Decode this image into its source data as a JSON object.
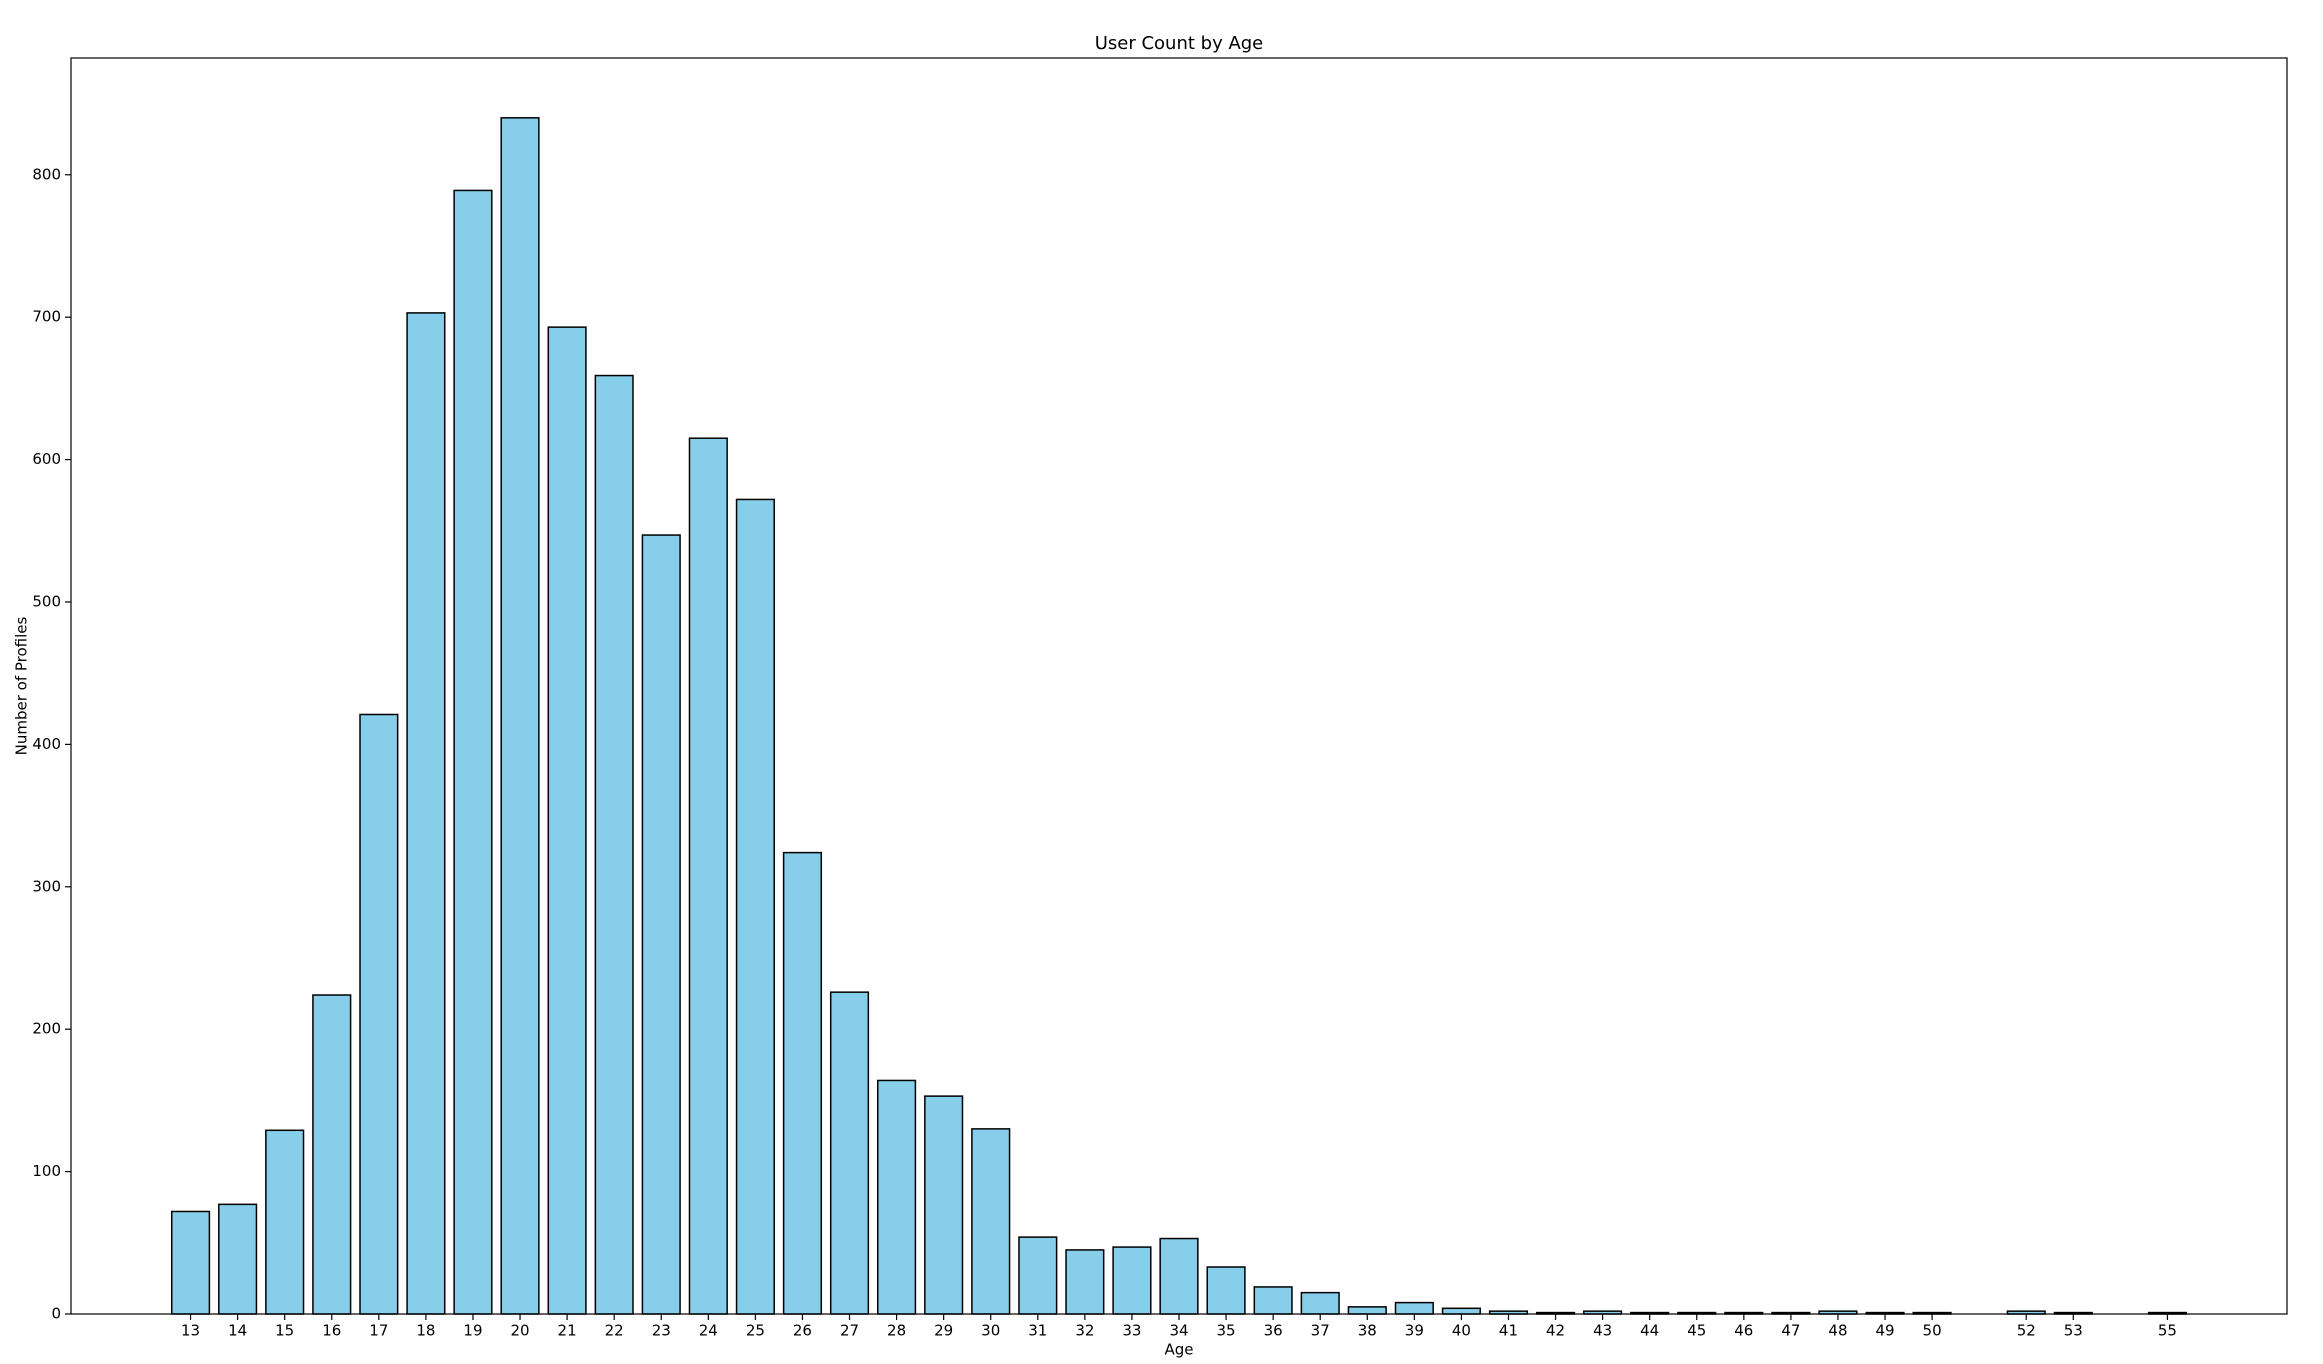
{
  "chart_data": {
    "type": "bar",
    "title": "User Count by Age",
    "x_label": "Age",
    "y_label": "Number of Profiles",
    "x": [
      13,
      14,
      15,
      16,
      17,
      18,
      19,
      20,
      21,
      22,
      23,
      24,
      25,
      26,
      27,
      28,
      29,
      30,
      31,
      32,
      33,
      34,
      35,
      36,
      37,
      38,
      39,
      40,
      41,
      42,
      43,
      44,
      45,
      46,
      47,
      48,
      49,
      50,
      52,
      53,
      55
    ],
    "values": [
      72,
      77,
      129,
      224,
      421,
      703,
      789,
      840,
      693,
      659,
      547,
      615,
      572,
      324,
      226,
      164,
      153,
      130,
      54,
      45,
      47,
      53,
      33,
      19,
      15,
      5,
      8,
      4,
      2,
      1,
      2,
      1,
      1,
      1,
      1,
      2,
      1,
      1,
      2,
      1,
      1
    ],
    "color": "#87ceeb",
    "edge_color": "#000000",
    "bar_width": 0.8,
    "xlim": [
      10.46,
      57.54
    ],
    "xticks": [
      13,
      14,
      15,
      16,
      17,
      18,
      19,
      20,
      21,
      22,
      23,
      24,
      25,
      26,
      27,
      28,
      29,
      30,
      31,
      32,
      33,
      34,
      35,
      36,
      37,
      38,
      39,
      40,
      41,
      42,
      43,
      44,
      45,
      46,
      47,
      48,
      49,
      50,
      52,
      53,
      55
    ],
    "ylim": [
      0,
      882
    ],
    "yticks": [
      0,
      100,
      200,
      300,
      400,
      500,
      600,
      700,
      800
    ],
    "grid": false
  }
}
